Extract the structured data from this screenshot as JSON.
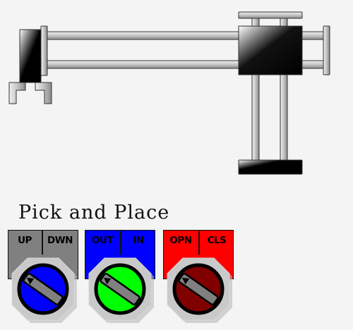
{
  "title": "Pick and Place",
  "selectors": [
    {
      "id": "up-down",
      "left_label": "UP",
      "right_label": "DWN",
      "panel_color": "#808080",
      "knob_color": "#0000ff"
    },
    {
      "id": "out-in",
      "left_label": "OUT",
      "right_label": "IN",
      "panel_color": "#0000ff",
      "knob_color": "#00ff00"
    },
    {
      "id": "open-close",
      "left_label": "OPN",
      "right_label": "CLS",
      "panel_color": "#ff0000",
      "knob_color": "#800000"
    }
  ]
}
